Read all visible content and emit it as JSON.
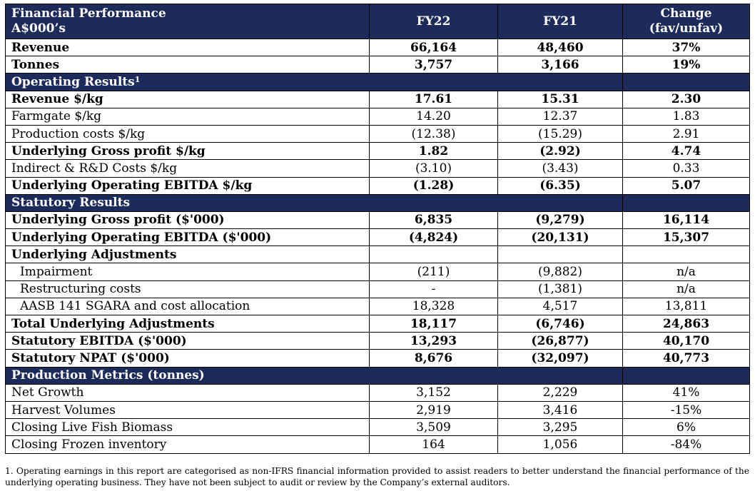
{
  "header": {
    "title_line1": "Financial Performance",
    "title_line2": "A$000’s",
    "fy22": "FY22",
    "fy21": "FY21",
    "change_line1": "Change",
    "change_line2": "(fav/unfav)"
  },
  "rows": [
    {
      "type": "data",
      "bold": true,
      "label": "Revenue",
      "fy22": "66,164",
      "fy21": "48,460",
      "change": "37%"
    },
    {
      "type": "data",
      "bold": true,
      "label": "Tonnes",
      "fy22": "3,757",
      "fy21": "3,166",
      "change": "19%"
    },
    {
      "type": "section",
      "label": "Operating Results",
      "sup": "1"
    },
    {
      "type": "data",
      "bold": true,
      "label": "Revenue $/kg",
      "fy22": "17.61",
      "fy21": "15.31",
      "change": "2.30"
    },
    {
      "type": "data",
      "label": "Farmgate $/kg",
      "fy22": "14.20",
      "fy21": "12.37",
      "change": "1.83"
    },
    {
      "type": "data",
      "label": "Production costs $/kg",
      "fy22": "(12.38)",
      "fy21": "(15.29)",
      "change": "2.91"
    },
    {
      "type": "data",
      "bold": true,
      "label": "Underlying Gross profit $/kg",
      "fy22": "1.82",
      "fy21": "(2.92)",
      "change": "4.74"
    },
    {
      "type": "data",
      "label": "Indirect & R&D Costs $/kg",
      "fy22": "(3.10)",
      "fy21": "(3.43)",
      "change": "0.33"
    },
    {
      "type": "data",
      "bold": true,
      "label": "Underlying Operating EBITDA $/kg",
      "fy22": "(1.28)",
      "fy21": "(6.35)",
      "change": "5.07"
    },
    {
      "type": "section",
      "label": "Statutory Results"
    },
    {
      "type": "data",
      "bold": true,
      "label": "Underlying Gross profit ($'000)",
      "fy22": "6,835",
      "fy21": "(9,279)",
      "change": "16,114"
    },
    {
      "type": "data",
      "bold": true,
      "label": "Underlying Operating EBITDA ($'000)",
      "fy22": "(4,824)",
      "fy21": "(20,131)",
      "change": "15,307"
    },
    {
      "type": "data",
      "bold": true,
      "label": "Underlying Adjustments",
      "fy22": "",
      "fy21": "",
      "change": ""
    },
    {
      "type": "data",
      "indent": true,
      "label": "Impairment",
      "fy22": "(211)",
      "fy21": "(9,882)",
      "change": "n/a"
    },
    {
      "type": "data",
      "indent": true,
      "label": "Restructuring costs",
      "fy22": "-",
      "fy21": "(1,381)",
      "change": "n/a"
    },
    {
      "type": "data",
      "indent": true,
      "label": "AASB 141 SGARA and cost allocation",
      "fy22": "18,328",
      "fy21": "4,517",
      "change": "13,811"
    },
    {
      "type": "data",
      "bold": true,
      "label": "Total Underlying Adjustments",
      "fy22": "18,117",
      "fy21": "(6,746)",
      "change": "24,863"
    },
    {
      "type": "data",
      "bold": true,
      "label": "Statutory EBITDA ($'000)",
      "fy22": "13,293",
      "fy21": "(26,877)",
      "change": "40,170"
    },
    {
      "type": "data",
      "bold": true,
      "label": "Statutory NPAT ($'000)",
      "fy22": "8,676",
      "fy21": "(32,097)",
      "change": "40,773"
    },
    {
      "type": "section",
      "label": "Production Metrics (tonnes)"
    },
    {
      "type": "data",
      "label": "Net Growth",
      "fy22": "3,152",
      "fy21": "2,229",
      "change": "41%"
    },
    {
      "type": "data",
      "label": "Harvest Volumes",
      "fy22": "2,919",
      "fy21": "3,416",
      "change": "-15%"
    },
    {
      "type": "data",
      "label": "Closing Live Fish Biomass",
      "fy22": "3,509",
      "fy21": "3,295",
      "change": "6%"
    },
    {
      "type": "data",
      "label": "Closing Frozen inventory",
      "fy22": "164",
      "fy21": "1,056",
      "change": "-84%"
    }
  ],
  "footnote": "1. Operating earnings in this report are categorised as non-IFRS financial information provided to assist readers to better understand the financial performance of the underlying operating business. They have not been subject to audit or review by the Company’s external auditors.",
  "colors": {
    "header_bg": "#1c2b5a",
    "header_text": "#ffffff"
  }
}
